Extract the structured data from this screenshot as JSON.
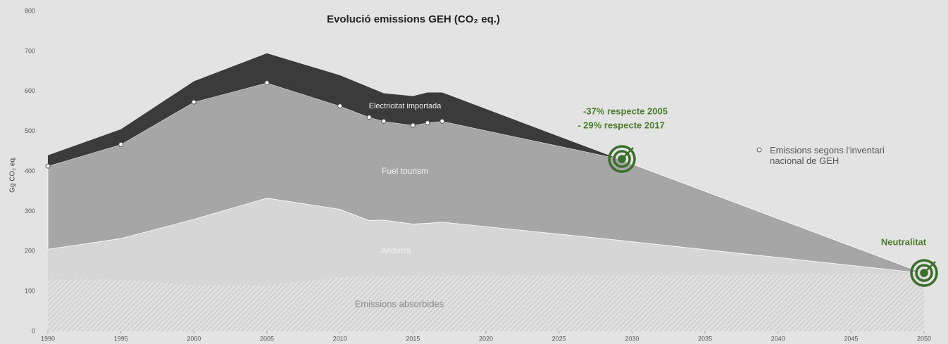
{
  "chart_data": {
    "type": "stacked_area",
    "title": "Evolució emissions GEH (CO₂ eq.)",
    "y_label": "Gg CO₂ eq.",
    "x": [
      1990,
      1995,
      2000,
      2005,
      2010,
      2012,
      2013,
      2015,
      2016,
      2017,
      2029,
      2050
    ],
    "series": [
      {
        "name": "Andorra",
        "color": "#d6d6d6",
        "values": [
          205,
          232,
          280,
          333,
          305,
          277,
          278,
          268,
          270,
          273,
          228,
          145
        ]
      },
      {
        "name": "Fuel tourism",
        "color": "#a6a6a6",
        "values": [
          208,
          235,
          293,
          288,
          258,
          258,
          247,
          247,
          251,
          252,
          204,
          0
        ]
      },
      {
        "name": "Electricitat importada",
        "color": "#3b3b3b",
        "values": [
          27,
          38,
          52,
          74,
          77,
          75,
          70,
          73,
          76,
          72,
          0,
          0
        ]
      }
    ],
    "absorbed": {
      "name": "Emissions absorbides",
      "values": [
        130,
        130,
        115,
        115,
        135,
        138,
        138,
        140,
        140,
        140,
        140,
        145
      ]
    },
    "inventory": {
      "name": "Emissions segons l'inventari nacional de GEH",
      "x": [
        1990,
        1995,
        2000,
        2005,
        2010,
        2012,
        2013,
        2015,
        2016,
        2017
      ],
      "values": [
        413,
        467,
        573,
        621,
        563,
        535,
        525,
        515,
        521,
        525
      ]
    },
    "annotations": [
      "-37% respecte 2005",
      "- 29% respecte 2017",
      "Neutralitat"
    ],
    "xlim": [
      1990,
      2050
    ],
    "xticks": [
      1990,
      1995,
      2000,
      2005,
      2010,
      2015,
      2020,
      2025,
      2030,
      2035,
      2040,
      2045,
      2050
    ],
    "ylim": [
      0,
      800
    ],
    "yticks": [
      0,
      100,
      200,
      300,
      400,
      500,
      600,
      700,
      800
    ]
  }
}
